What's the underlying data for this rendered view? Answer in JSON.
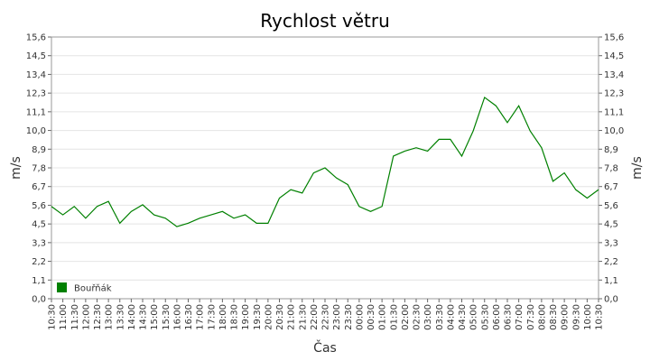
{
  "chart_data": {
    "type": "line",
    "title": "Rychlost větru",
    "x_label": "Čas",
    "y_label": "m/s",
    "categories": [
      "10:30",
      "11:00",
      "11:30",
      "12:00",
      "12:30",
      "13:00",
      "13:30",
      "14:00",
      "14:30",
      "15:00",
      "15:30",
      "16:00",
      "16:30",
      "17:00",
      "17:30",
      "18:00",
      "18:30",
      "19:00",
      "19:30",
      "20:00",
      "20:30",
      "21:00",
      "21:30",
      "22:00",
      "22:30",
      "23:00",
      "23:30",
      "00:00",
      "00:30",
      "01:00",
      "01:30",
      "02:00",
      "02:30",
      "03:00",
      "03:30",
      "04:00",
      "04:30",
      "05:00",
      "05:30",
      "06:00",
      "06:30",
      "07:00",
      "07:30",
      "08:00",
      "08:30",
      "09:00",
      "09:30",
      "10:00",
      "10:30"
    ],
    "series": [
      {
        "name": "Bouřňák",
        "color": "#008000",
        "values": [
          5.5,
          5.0,
          5.5,
          4.8,
          5.5,
          5.8,
          4.5,
          5.2,
          5.6,
          5.0,
          4.8,
          4.3,
          4.5,
          4.8,
          5.0,
          5.2,
          4.8,
          5.0,
          4.5,
          4.5,
          6.0,
          6.5,
          6.3,
          7.5,
          7.8,
          7.2,
          6.8,
          5.5,
          5.2,
          5.5,
          8.5,
          8.8,
          9.0,
          8.8,
          9.5,
          9.5,
          8.5,
          10.0,
          12.0,
          11.5,
          10.5,
          11.5,
          10.0,
          9.0,
          7.0,
          7.5,
          6.5,
          6.0,
          6.5
        ]
      }
    ],
    "ylim": [
      0,
      15.6
    ],
    "yticks": [
      {
        "value": 0,
        "label": "0,0"
      },
      {
        "value": 1.114,
        "label": "1,1"
      },
      {
        "value": 2.229,
        "label": "2,2"
      },
      {
        "value": 3.343,
        "label": "3,3"
      },
      {
        "value": 4.457,
        "label": "4,5"
      },
      {
        "value": 5.571,
        "label": "5,6"
      },
      {
        "value": 6.686,
        "label": "6,7"
      },
      {
        "value": 7.8,
        "label": "7,8"
      },
      {
        "value": 8.914,
        "label": "8,9"
      },
      {
        "value": 10.029,
        "label": "10,0"
      },
      {
        "value": 11.143,
        "label": "11,1"
      },
      {
        "value": 12.257,
        "label": "12,3"
      },
      {
        "value": 13.371,
        "label": "13,4"
      },
      {
        "value": 14.486,
        "label": "14,5"
      },
      {
        "value": 15.6,
        "label": "15,6"
      }
    ],
    "grid": true,
    "legend": "bottom-left"
  }
}
